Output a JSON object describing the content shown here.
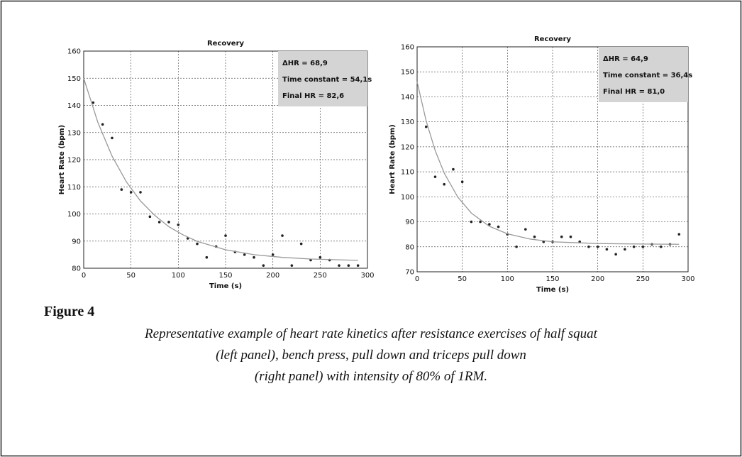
{
  "chart_data": [
    {
      "type": "scatter",
      "title": "Recovery",
      "xlabel": "Time (s)",
      "ylabel": "Heart Rate (bpm)",
      "xlim": [
        0,
        300
      ],
      "xticks": [
        0,
        50,
        100,
        150,
        200,
        250,
        300
      ],
      "ylim": [
        80,
        160
      ],
      "yticks": [
        80,
        90,
        100,
        110,
        120,
        130,
        140,
        150,
        160
      ],
      "grid": true,
      "annotations": [
        "ΔHR = 68,9",
        "Time constant = 54,1s",
        "Final HR = 82,6"
      ],
      "series": [
        {
          "type": "scatter",
          "color": "#222",
          "x": [
            10,
            20,
            30,
            40,
            50,
            60,
            70,
            80,
            90,
            100,
            110,
            120,
            130,
            140,
            150,
            160,
            170,
            180,
            190,
            200,
            210,
            220,
            230,
            240,
            250,
            260,
            270,
            280,
            290
          ],
          "values": [
            141,
            133,
            128,
            109,
            108,
            108,
            99,
            97,
            97,
            96,
            91,
            89,
            84,
            88,
            92,
            86,
            85,
            84,
            81,
            85,
            92,
            81,
            89,
            83,
            84,
            83,
            81,
            81,
            81
          ]
        },
        {
          "type": "line",
          "color": "#999",
          "x": [
            0,
            15,
            30,
            45,
            60,
            75,
            90,
            105,
            120,
            150,
            180,
            210,
            240,
            270,
            290
          ],
          "values": [
            150,
            133.7,
            121.3,
            111.9,
            104.8,
            99.5,
            95.3,
            92.3,
            89.9,
            86.8,
            85.0,
            84.0,
            83.4,
            83.1,
            82.9
          ]
        }
      ]
    },
    {
      "type": "scatter",
      "title": "Recovery",
      "xlabel": "Time (s)",
      "ylabel": "Heart Rate (bpm)",
      "xlim": [
        0,
        300
      ],
      "xticks": [
        0,
        50,
        100,
        150,
        200,
        250,
        300
      ],
      "ylim": [
        70,
        160
      ],
      "yticks": [
        70,
        80,
        90,
        100,
        110,
        120,
        130,
        140,
        150,
        160
      ],
      "grid": true,
      "annotations": [
        "ΔHR = 64,9",
        "Time constant = 36,4s",
        "Final HR = 81,0"
      ],
      "series": [
        {
          "type": "scatter",
          "color": "#222",
          "x": [
            10,
            20,
            30,
            40,
            50,
            60,
            70,
            80,
            90,
            100,
            110,
            120,
            130,
            140,
            150,
            160,
            170,
            180,
            190,
            200,
            210,
            220,
            230,
            240,
            250,
            260,
            270,
            280,
            290
          ],
          "values": [
            128,
            108,
            105,
            111,
            106,
            90,
            90,
            89,
            88,
            85,
            80,
            87,
            84,
            82,
            82,
            84,
            84,
            82,
            80,
            80,
            79,
            77,
            79,
            80,
            80,
            81,
            80,
            81,
            85
          ]
        },
        {
          "type": "line",
          "color": "#999",
          "x": [
            0,
            10,
            20,
            30,
            45,
            60,
            80,
            100,
            125,
            150,
            200,
            250,
            290
          ],
          "values": [
            146,
            130.4,
            118.5,
            109.5,
            99.9,
            93.5,
            88.2,
            85.2,
            83.1,
            82.0,
            81.3,
            81.1,
            81.0
          ]
        }
      ]
    }
  ],
  "figure": {
    "label": "Figure 4",
    "caption": [
      "Representative example of heart rate kinetics after resistance exercises of half squat",
      "(left panel), bench press, pull down and triceps pull down",
      "(right panel) with intensity of 80% of 1RM."
    ]
  }
}
